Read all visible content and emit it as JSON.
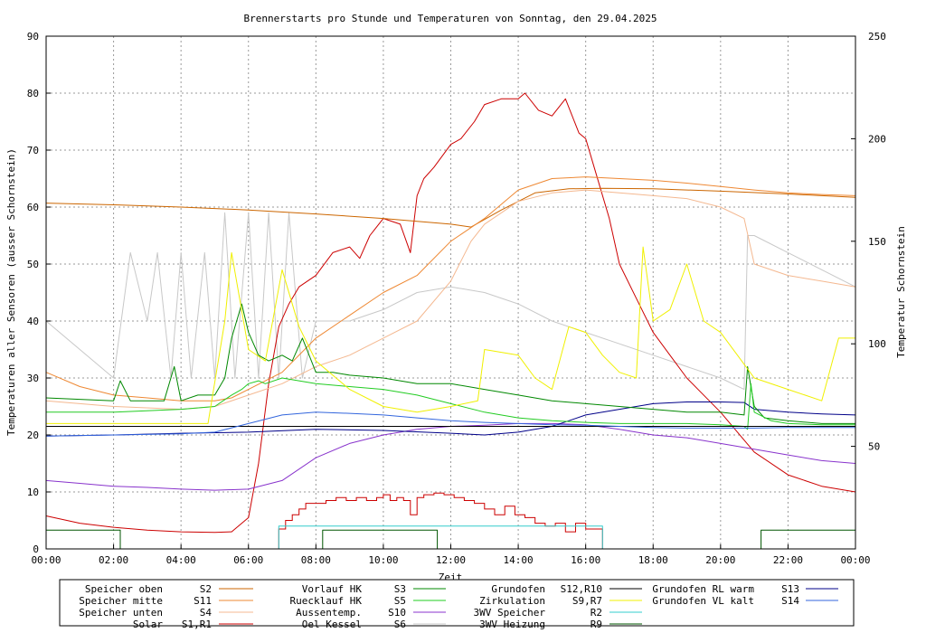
{
  "chart_data": {
    "type": "line",
    "title": "Brennerstarts pro Stunde und Temperaturen von Sonntag, den 29.04.2025",
    "xlabel": "Zeit",
    "ylabel": "Temperaturen aller Sensoren (ausser Schornstein)",
    "y2label": "Temperatur Schornstein",
    "xlim": [
      0,
      24
    ],
    "ylim": [
      0,
      90
    ],
    "y2lim": [
      0,
      250
    ],
    "grid": true,
    "legend_position": "bottom",
    "x_ticks": [
      "00:00",
      "02:00",
      "04:00",
      "06:00",
      "08:00",
      "10:00",
      "12:00",
      "14:00",
      "16:00",
      "18:00",
      "20:00",
      "22:00",
      "00:00"
    ],
    "y_ticks": [
      "0",
      "10",
      "20",
      "30",
      "40",
      "50",
      "60",
      "70",
      "80",
      "90"
    ],
    "y2_ticks": [
      "50",
      "100",
      "150",
      "200",
      "250"
    ],
    "colors": {
      "accent_y2label": "#ff44ff"
    },
    "series": [
      {
        "name": "Speicher oben",
        "code": "S2",
        "color": "#cc6600",
        "x": [
          0,
          2,
          4,
          6,
          8,
          10,
          12,
          12.6,
          13.5,
          14.5,
          15.5,
          16.5,
          18,
          20,
          22,
          24
        ],
        "y": [
          60.7,
          60.4,
          60.0,
          59.5,
          58.8,
          58.0,
          57.0,
          56.5,
          59.5,
          62.5,
          63.2,
          63.3,
          63.2,
          62.8,
          62.3,
          61.7
        ]
      },
      {
        "name": "Speicher mitte",
        "code": "S11",
        "color": "#ee8833",
        "x": [
          0,
          1,
          2,
          3,
          4,
          5,
          5.5,
          6,
          7,
          8,
          9,
          10,
          11,
          12,
          13,
          14,
          15,
          16,
          17,
          18,
          19,
          20,
          21,
          22,
          23,
          24
        ],
        "y": [
          31,
          28.5,
          27,
          26.5,
          26,
          26,
          26.5,
          28,
          31,
          37,
          41,
          45,
          48,
          54,
          58,
          63,
          65,
          65.3,
          65,
          64.7,
          64.2,
          63.6,
          63,
          62.5,
          62.2,
          62
        ]
      },
      {
        "name": "Speicher unten",
        "code": "S4",
        "color": "#f4b890",
        "x": [
          0,
          2,
          4,
          5,
          6,
          7,
          8,
          9,
          10,
          11,
          12,
          12.6,
          13,
          14,
          15,
          16,
          17,
          18,
          19,
          20,
          20.7,
          21,
          22,
          23,
          24
        ],
        "y": [
          26,
          25,
          24.5,
          25,
          27,
          29,
          32,
          34,
          37,
          40,
          47,
          54,
          57,
          61,
          62.5,
          63,
          62.5,
          62,
          61.5,
          60,
          58,
          50,
          48,
          47,
          46
        ]
      },
      {
        "name": "Solar",
        "code": "S1,R1",
        "color": "#cc0000",
        "x": [
          0,
          1,
          2,
          3,
          4,
          5,
          5.5,
          6,
          6.3,
          6.6,
          6.9,
          7.2,
          7.5,
          8,
          8.5,
          9,
          9.3,
          9.6,
          10,
          10.5,
          10.8,
          11,
          11.2,
          11.5,
          12,
          12.3,
          12.7,
          13,
          13.5,
          14,
          14.2,
          14.6,
          15,
          15.4,
          15.8,
          16,
          16.3,
          16.7,
          17,
          17.5,
          18,
          18.5,
          19,
          20,
          21,
          22,
          23,
          24
        ],
        "y": [
          5.8,
          4.5,
          3.8,
          3.3,
          3.0,
          2.9,
          3.0,
          5.5,
          15,
          29,
          39,
          43,
          46,
          48,
          52,
          53,
          51,
          55,
          58,
          57,
          52,
          62,
          65,
          67,
          71,
          72,
          75,
          78,
          79,
          79,
          80,
          77,
          76,
          79,
          73,
          72,
          66,
          58,
          50,
          44,
          38,
          34,
          30,
          24,
          17,
          13,
          11,
          10
        ]
      },
      {
        "name": "Vorlauf HK",
        "code": "S3",
        "color": "#008800",
        "x": [
          0,
          2,
          2.2,
          2.5,
          3,
          3.5,
          3.8,
          4,
          4.5,
          5,
          5.3,
          5.5,
          5.8,
          6,
          6.3,
          6.6,
          7,
          7.3,
          7.6,
          8,
          8.5,
          9,
          10,
          11,
          12,
          13,
          14,
          15,
          16,
          17,
          18,
          19,
          20,
          20.7,
          20.8,
          21,
          21.3,
          22,
          23,
          24
        ],
        "y": [
          26.5,
          26,
          29.5,
          26,
          26,
          26,
          32,
          26,
          27,
          27,
          30,
          37,
          43,
          38,
          34,
          33,
          34,
          33,
          37,
          31,
          31,
          30.5,
          30,
          29,
          29,
          28,
          27,
          26,
          25.5,
          25,
          24.5,
          24,
          24,
          23.5,
          32,
          25,
          23,
          22.5,
          22,
          22
        ]
      },
      {
        "name": "Ruecklauf HK",
        "code": "S5",
        "color": "#22cc22",
        "x": [
          0,
          2,
          4,
          5,
          5.5,
          5.8,
          6,
          6.3,
          6.5,
          7,
          7.5,
          8,
          9,
          10,
          11,
          12,
          13,
          14,
          15,
          16,
          17,
          18,
          19,
          20,
          20.7,
          20.8,
          20.9,
          21,
          21.5,
          22,
          23,
          24
        ],
        "y": [
          24,
          24,
          24.5,
          25,
          27,
          28,
          29,
          29.5,
          29,
          30,
          29.5,
          29,
          28.5,
          28,
          27,
          25.5,
          24,
          23,
          22.5,
          22.2,
          22,
          22,
          22,
          21.8,
          21.5,
          21,
          29,
          24,
          22.5,
          22,
          21.8,
          21.8
        ]
      },
      {
        "name": "Aussentemp.",
        "code": "S10",
        "color": "#8833cc",
        "x": [
          0,
          1,
          2,
          3,
          4,
          5,
          6,
          7,
          8,
          9,
          10,
          11,
          12,
          13,
          14,
          15,
          16,
          17,
          18,
          19,
          20,
          21,
          22,
          23,
          24
        ],
        "y": [
          12,
          11.5,
          11,
          10.8,
          10.5,
          10.3,
          10.5,
          12,
          16,
          18.5,
          20,
          21,
          21.5,
          21.7,
          22,
          22,
          21.8,
          21,
          20,
          19.5,
          18.5,
          17.5,
          16.5,
          15.5,
          15
        ]
      },
      {
        "name": "Oel Kessel",
        "code": "S6",
        "color": "#c8c8c8",
        "x": [
          0,
          1,
          2,
          2.5,
          3,
          3.3,
          3.7,
          4,
          4.3,
          4.7,
          5,
          5.3,
          5.6,
          6,
          6.3,
          6.6,
          6.9,
          7.2,
          7.6,
          8,
          9,
          10,
          11,
          12,
          13,
          14,
          15,
          16,
          17,
          18,
          19,
          20,
          20.7,
          20.8,
          21,
          22,
          23,
          24
        ],
        "y": [
          40,
          35,
          30,
          52,
          40,
          52,
          30,
          52,
          30,
          52,
          30,
          59,
          30,
          59,
          30,
          59,
          30,
          59,
          30,
          40,
          40,
          42,
          45,
          46,
          45,
          43,
          40,
          38,
          36,
          34,
          32,
          30,
          28,
          55,
          55,
          52,
          49,
          46
        ]
      },
      {
        "name": "Grundofen",
        "code": "S12,R10",
        "color": "#000000",
        "x": [
          0,
          24
        ],
        "y": [
          21.5,
          21.5
        ]
      },
      {
        "name": "Zirkulation",
        "code": "S9,R7",
        "color": "#f0f000",
        "x": [
          0,
          4.8,
          5.3,
          5.5,
          6,
          6.5,
          7,
          7.5,
          8,
          9,
          10,
          11,
          12,
          12.8,
          13,
          14,
          14.5,
          15,
          15.5,
          16,
          16.5,
          17,
          17.5,
          17.7,
          18,
          18.5,
          19,
          19.5,
          20,
          20.5,
          21,
          22,
          22.5,
          23,
          23.5,
          24
        ],
        "y": [
          22,
          22,
          40,
          52,
          35,
          33,
          49,
          39,
          33,
          28,
          25,
          24,
          25,
          26,
          35,
          34,
          30,
          28,
          39,
          38,
          34,
          31,
          30,
          53,
          40,
          42,
          50,
          40,
          38,
          34,
          30,
          28,
          27,
          26,
          37,
          37
        ]
      },
      {
        "name": "3WV Speicher",
        "code": "R2",
        "color": "#33cccc",
        "x": [
          0,
          6.9,
          6.9,
          16.5,
          16.5,
          24
        ],
        "y": [
          0,
          0,
          4,
          4,
          0,
          0
        ]
      },
      {
        "name": "3WV Heizung",
        "code": "R9",
        "color": "#005500",
        "x": [
          0,
          2.2,
          2.2,
          8.2,
          8.2,
          11.6,
          11.6,
          21.2,
          21.2,
          24
        ],
        "y": [
          3.3,
          3.3,
          0,
          0,
          3.3,
          3.3,
          0,
          0,
          3.3,
          3.3
        ]
      },
      {
        "name": "Grundofen RL warm",
        "code": "S13",
        "color": "#000088",
        "x": [
          0,
          2,
          4,
          6,
          8,
          10,
          12,
          13,
          14,
          15,
          15.5,
          16,
          17,
          18,
          19,
          20,
          20.7,
          21,
          22,
          23,
          24
        ],
        "y": [
          19.8,
          20,
          20.3,
          20.5,
          21,
          20.8,
          20.3,
          20,
          20.5,
          21.5,
          22.5,
          23.5,
          24.5,
          25.5,
          25.8,
          25.8,
          25.7,
          24.5,
          24,
          23.7,
          23.5
        ]
      },
      {
        "name": "Grundofen VL kalt",
        "code": "S14",
        "color": "#3366dd",
        "x": [
          0,
          2,
          4,
          5,
          6,
          7,
          8,
          9,
          10,
          11,
          12,
          13,
          14,
          15,
          16,
          17,
          18,
          19,
          20,
          21,
          22,
          23,
          24
        ],
        "y": [
          19.8,
          20,
          20.2,
          20.5,
          22,
          23.5,
          24,
          23.8,
          23.5,
          23,
          22.5,
          22.2,
          22,
          21.8,
          21.7,
          21.5,
          21.3,
          21.2,
          21.2,
          21.2,
          21.3,
          21.3,
          21.3
        ]
      }
    ],
    "burner_starts": {
      "name": "Brennerstarts pro Stunde",
      "color": "#cc0000",
      "x_range": [
        6.9,
        16.5
      ],
      "x": [
        6.9,
        7.1,
        7.3,
        7.5,
        7.7,
        8.0,
        8.3,
        8.6,
        8.9,
        9.2,
        9.5,
        9.8,
        10.0,
        10.2,
        10.4,
        10.6,
        10.8,
        11.0,
        11.2,
        11.5,
        11.8,
        12.1,
        12.4,
        12.7,
        13.0,
        13.3,
        13.6,
        13.9,
        14.2,
        14.5,
        14.8,
        15.1,
        15.4,
        15.7,
        16.0,
        16.3
      ],
      "y": [
        3.5,
        5,
        6,
        7,
        8,
        8,
        8.5,
        9,
        8.5,
        9,
        8.5,
        9,
        9.5,
        8.5,
        9,
        8.5,
        6,
        9,
        9.5,
        9.8,
        9.5,
        9,
        8.5,
        8,
        7,
        6,
        7.5,
        6,
        5.5,
        4.5,
        4,
        4.5,
        3,
        4.5,
        3.5,
        3.5
      ]
    }
  }
}
